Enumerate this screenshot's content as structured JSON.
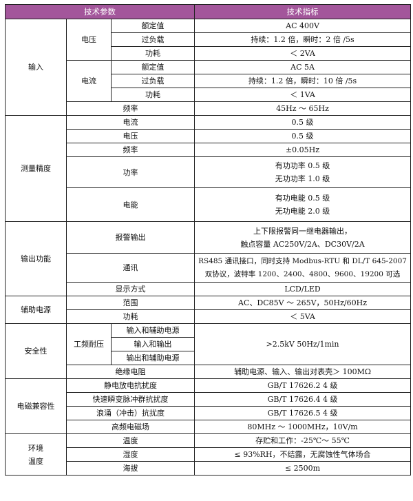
{
  "header": {
    "param": "技术参数",
    "spec": "技术指标"
  },
  "colors": {
    "header_bg": "#A3569B",
    "header_text": "#FFFFFF",
    "border": "#222222"
  },
  "input": {
    "label": "输入",
    "voltage": {
      "label": "电压",
      "rated": [
        "额定值",
        "AC 400V"
      ],
      "overload": [
        "过负载",
        "持续：1.2 倍，瞬时：2 倍 /5s"
      ],
      "power": [
        "功耗",
        "＜ 2VA"
      ]
    },
    "current": {
      "label": "电流",
      "rated": [
        "额定值",
        "AC 5A"
      ],
      "overload": [
        "过负载",
        "持续：1.2 倍，瞬时：10 倍 /5s"
      ],
      "power": [
        "功耗",
        "＜ 1VA"
      ]
    },
    "frequency": [
      "频率",
      "45Hz ～ 65Hz"
    ]
  },
  "accuracy": {
    "label": "测量精度",
    "current": [
      "电流",
      "0.5 级"
    ],
    "voltage": [
      "电压",
      "0.5 级"
    ],
    "frequency": [
      "频率",
      "±0.05Hz"
    ],
    "power": {
      "label": "功率",
      "lines": [
        "有功功率 0.5 级",
        "无功功率 1.0 级"
      ]
    },
    "energy": {
      "label": "电能",
      "lines": [
        "有功电能 0.5 级",
        "无功电能 2.0 级"
      ]
    }
  },
  "output": {
    "label": "输出功能",
    "alarm": {
      "label": "报警输出",
      "lines": [
        "上下限报警同一继电器输出，",
        "触点容量 AC250V/2A、DC30V/2A"
      ]
    },
    "comm": {
      "label": "通讯",
      "lines": [
        "RS485 通讯接口，同时支持 Modbus-RTU 和 DL/T 645-2007",
        "双协议，波特率 1200、2400、4800、9600、19200 可选"
      ]
    },
    "display": [
      "显示方式",
      "LCD/LED"
    ]
  },
  "aux": {
    "label": "辅助电源",
    "range": [
      "范围",
      "AC、DC85V ～ 265V，50Hz/60Hz"
    ],
    "power": [
      "功耗",
      "＜ 5VA"
    ]
  },
  "safety": {
    "label": "安全性",
    "withstand": {
      "label": "工频耐压",
      "items": [
        "输入和辅助电源",
        "输入和输出",
        "输出和辅助电源"
      ],
      "value": ">2.5kV 50Hz/1min"
    },
    "insulation": [
      "绝缘电阻",
      "辅助电源、输入、输出对表壳＞ 100MΩ"
    ]
  },
  "emc": {
    "label": "电磁兼容性",
    "rows": [
      [
        "静电放电抗扰度",
        "GB/T 17626.2 4 级"
      ],
      [
        "快速瞬变脉冲群抗扰度",
        "GB/T 17626.4 4 级"
      ],
      [
        "浪涌（冲击）抗扰度",
        "GB/T 17626.5 4 级"
      ],
      [
        "高频电磁场",
        "80MHz ～ 1000MHz，10V/m"
      ]
    ]
  },
  "env": {
    "label_lines": [
      "环境",
      "温度"
    ],
    "rows": [
      [
        "温度",
        "存贮和工作：-25℃～ 55℃"
      ],
      [
        "湿度",
        "≤ 93%RH，不结露，无腐蚀性气体场合"
      ],
      [
        "海拔",
        "≤ 2500m"
      ]
    ]
  }
}
